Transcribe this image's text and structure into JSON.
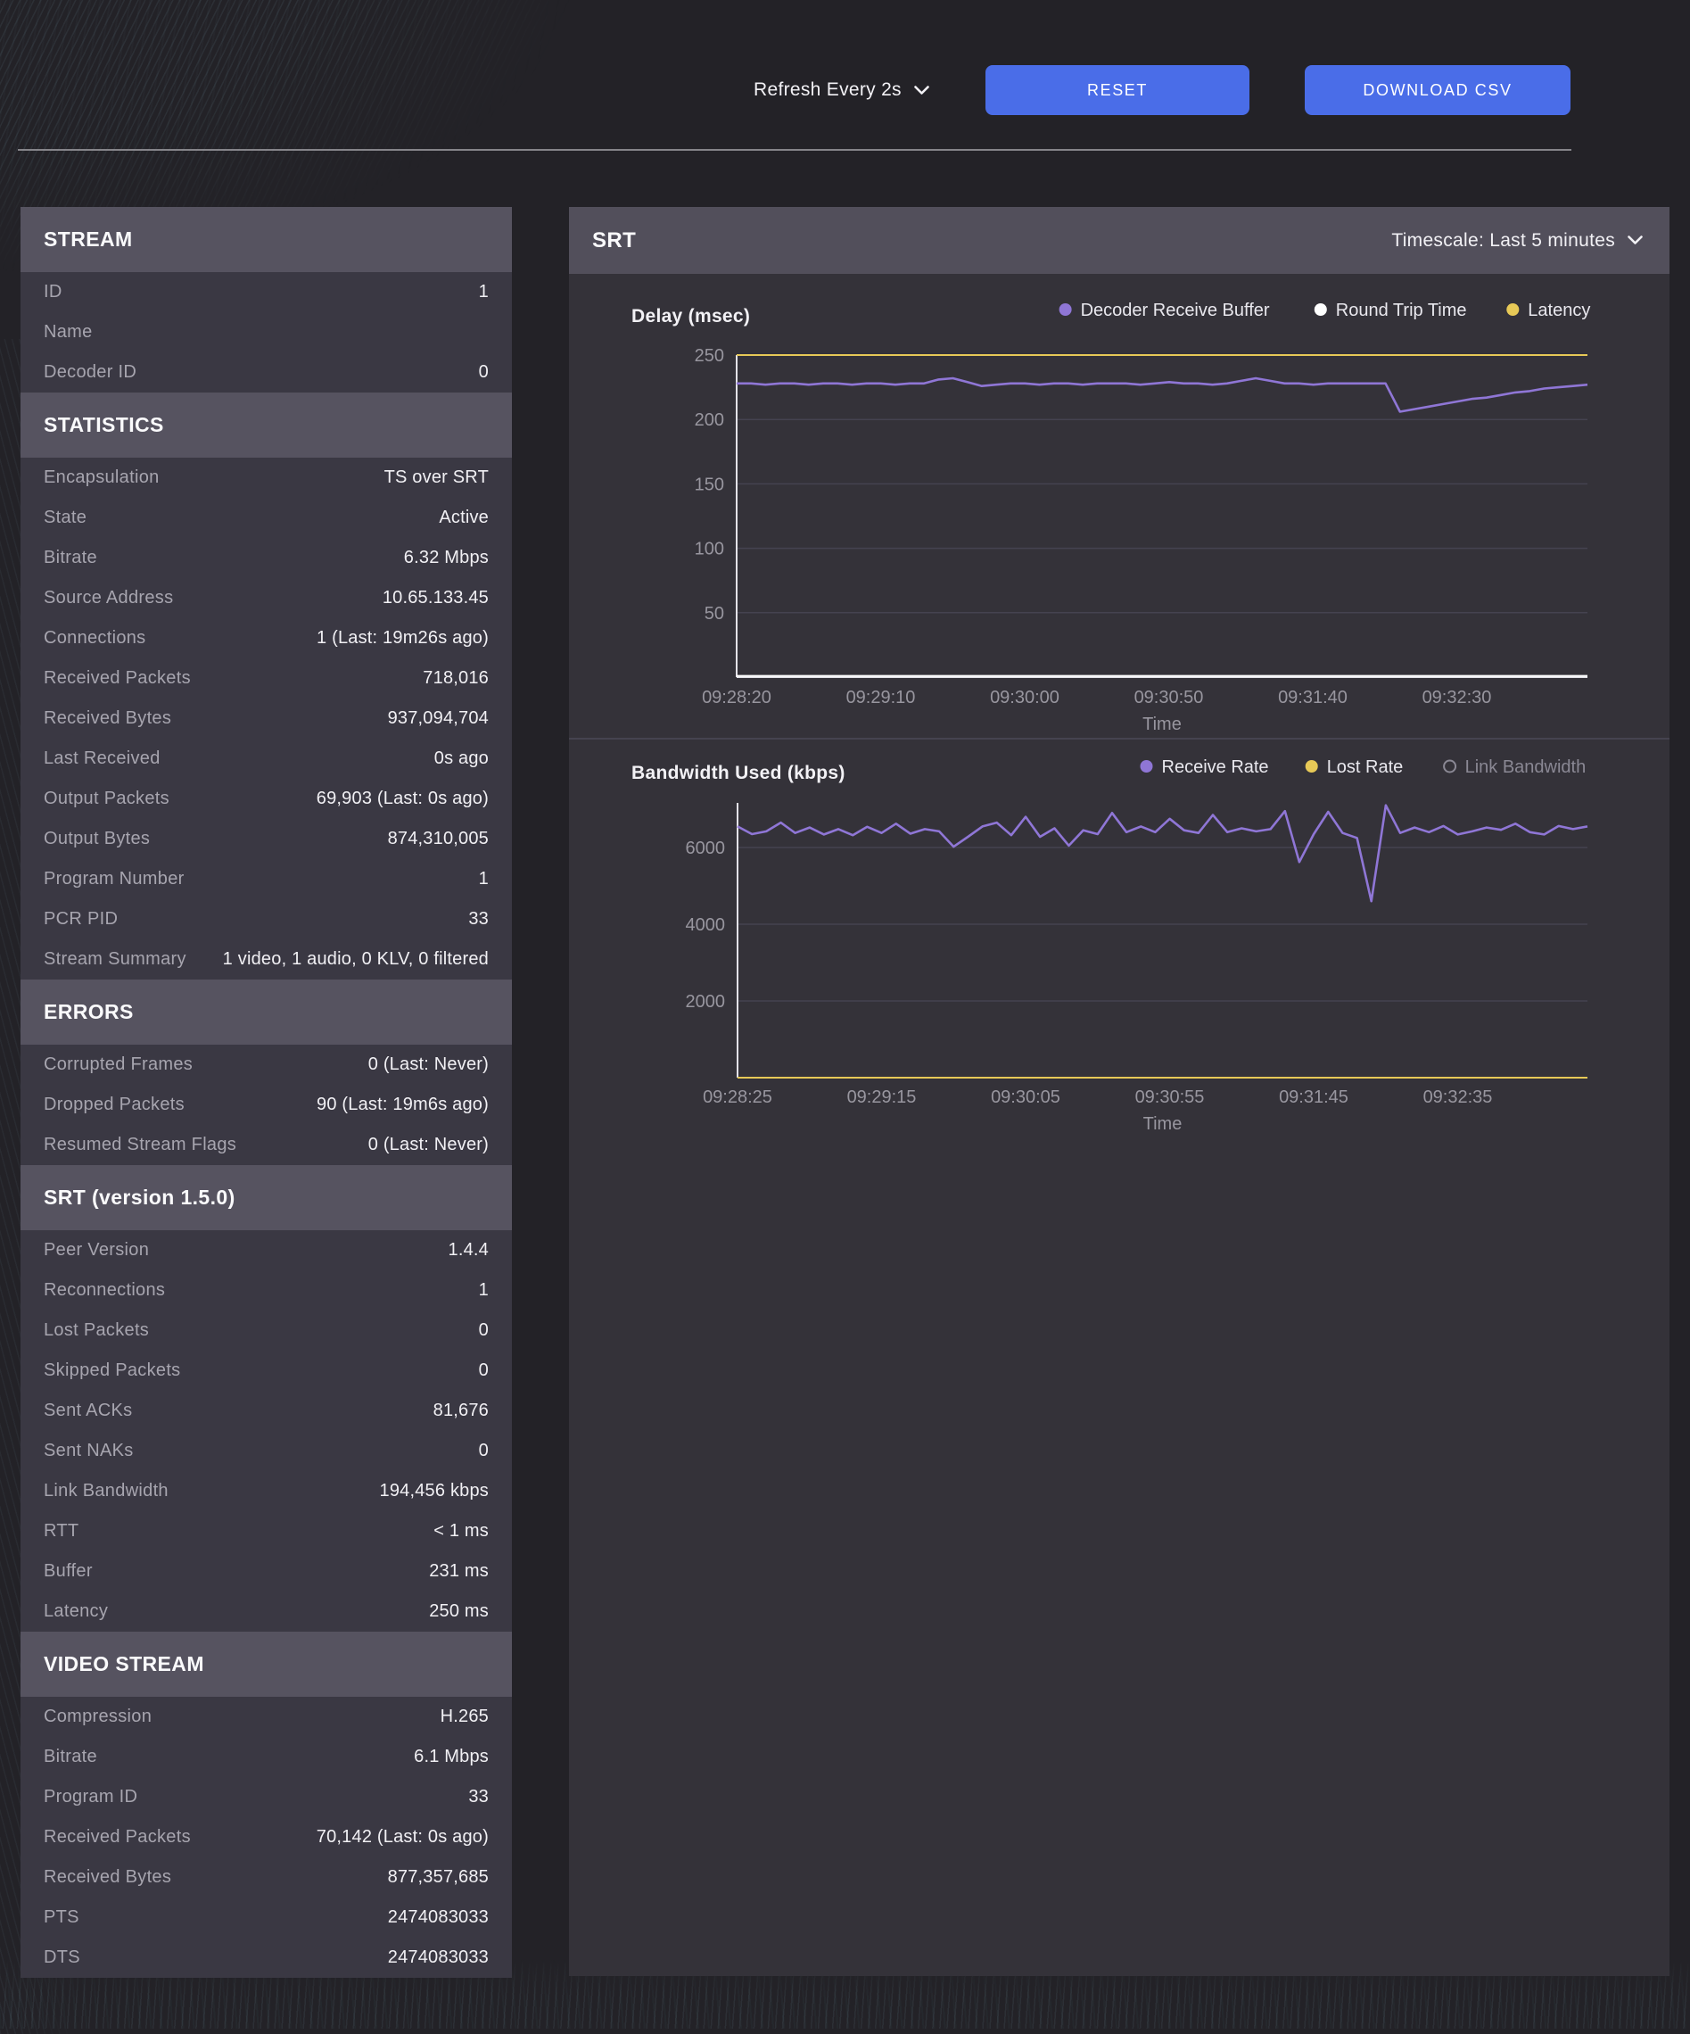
{
  "toolbar": {
    "refresh_label": "Refresh Every 2s",
    "reset_label": "RESET",
    "download_label": "DOWNLOAD CSV"
  },
  "left_panel": {
    "sections": [
      {
        "title": "STREAM",
        "rows": [
          {
            "label": "ID",
            "value": "1"
          },
          {
            "label": "Name",
            "value": ""
          },
          {
            "label": "Decoder ID",
            "value": "0"
          }
        ]
      },
      {
        "title": "STATISTICS",
        "rows": [
          {
            "label": "Encapsulation",
            "value": "TS over SRT"
          },
          {
            "label": "State",
            "value": "Active"
          },
          {
            "label": "Bitrate",
            "value": "6.32 Mbps"
          },
          {
            "label": "Source Address",
            "value": "10.65.133.45"
          },
          {
            "label": "Connections",
            "value": "1 (Last: 19m26s ago)"
          },
          {
            "label": "Received Packets",
            "value": "718,016"
          },
          {
            "label": "Received Bytes",
            "value": "937,094,704"
          },
          {
            "label": "Last Received",
            "value": "0s ago"
          },
          {
            "label": "Output Packets",
            "value": "69,903 (Last: 0s ago)"
          },
          {
            "label": "Output Bytes",
            "value": "874,310,005"
          },
          {
            "label": "Program Number",
            "value": "1"
          },
          {
            "label": "PCR PID",
            "value": "33"
          },
          {
            "label": "Stream Summary",
            "value": "1 video, 1 audio, 0 KLV, 0 filtered"
          }
        ]
      },
      {
        "title": "ERRORS",
        "rows": [
          {
            "label": "Corrupted Frames",
            "value": "0 (Last: Never)"
          },
          {
            "label": "Dropped Packets",
            "value": "90 (Last: 19m6s ago)"
          },
          {
            "label": "Resumed Stream Flags",
            "value": "0 (Last: Never)"
          }
        ]
      },
      {
        "title": "SRT (version 1.5.0)",
        "rows": [
          {
            "label": "Peer Version",
            "value": "1.4.4"
          },
          {
            "label": "Reconnections",
            "value": "1"
          },
          {
            "label": "Lost Packets",
            "value": "0"
          },
          {
            "label": "Skipped Packets",
            "value": "0"
          },
          {
            "label": "Sent ACKs",
            "value": "81,676"
          },
          {
            "label": "Sent NAKs",
            "value": "0"
          },
          {
            "label": "Link Bandwidth",
            "value": "194,456 kbps"
          },
          {
            "label": "RTT",
            "value": "< 1 ms"
          },
          {
            "label": "Buffer",
            "value": "231 ms"
          },
          {
            "label": "Latency",
            "value": "250 ms"
          }
        ]
      },
      {
        "title": "VIDEO STREAM",
        "rows": [
          {
            "label": "Compression",
            "value": "H.265"
          },
          {
            "label": "Bitrate",
            "value": "6.1 Mbps"
          },
          {
            "label": "Program ID",
            "value": "33"
          },
          {
            "label": "Received Packets",
            "value": "70,142 (Last: 0s ago)"
          },
          {
            "label": "Received Bytes",
            "value": "877,357,685"
          },
          {
            "label": "PTS",
            "value": "2474083033"
          },
          {
            "label": "DTS",
            "value": "2474083033"
          }
        ]
      }
    ]
  },
  "srt_panel": {
    "title": "SRT",
    "timescale_label": "Timescale: Last 5 minutes"
  },
  "chart_data": [
    {
      "type": "line",
      "title": "Delay (msec)",
      "xlabel": "Time",
      "ylim": [
        0,
        250
      ],
      "yticks": [
        50,
        100,
        150,
        200,
        250
      ],
      "x_tick_labels": [
        "09:28:20",
        "09:29:10",
        "09:30:00",
        "09:30:50",
        "09:31:40",
        "09:32:30"
      ],
      "grid": true,
      "legend_position": "top-right",
      "series": [
        {
          "name": "Decoder Receive Buffer",
          "color": "#8f76d6",
          "disabled": false,
          "values": [
            228,
            228,
            227,
            228,
            228,
            227,
            228,
            228,
            227,
            228,
            228,
            227,
            228,
            228,
            231,
            232,
            229,
            226,
            227,
            228,
            228,
            227,
            228,
            228,
            227,
            228,
            228,
            228,
            227,
            228,
            229,
            228,
            228,
            227,
            228,
            230,
            232,
            230,
            228,
            228,
            227,
            228,
            228,
            228,
            228,
            228,
            206,
            208,
            210,
            212,
            214,
            216,
            217,
            219,
            221,
            222,
            224,
            225,
            226,
            227
          ]
        },
        {
          "name": "Round Trip Time",
          "color": "#ffffff",
          "disabled": false,
          "values": [
            1,
            1,
            1,
            1,
            1,
            1,
            1,
            1,
            1,
            1,
            1,
            1,
            1,
            1,
            1,
            1,
            1,
            1,
            1,
            1,
            1,
            1,
            1,
            1,
            1,
            1,
            1,
            1,
            1,
            1,
            1,
            1,
            1,
            1,
            1,
            1,
            1,
            1,
            1,
            1,
            1,
            1,
            1,
            1,
            1,
            1,
            1,
            1,
            1,
            1,
            1,
            1,
            1,
            1,
            1,
            1,
            1,
            1,
            1,
            1
          ]
        },
        {
          "name": "Latency",
          "color": "#e7c957",
          "disabled": false,
          "values": [
            250,
            250,
            250,
            250,
            250,
            250,
            250,
            250,
            250,
            250,
            250,
            250,
            250,
            250,
            250,
            250,
            250,
            250,
            250,
            250,
            250,
            250,
            250,
            250,
            250,
            250,
            250,
            250,
            250,
            250,
            250,
            250,
            250,
            250,
            250,
            250,
            250,
            250,
            250,
            250,
            250,
            250,
            250,
            250,
            250,
            250,
            250,
            250,
            250,
            250,
            250,
            250,
            250,
            250,
            250,
            250,
            250,
            250,
            250,
            250
          ]
        }
      ]
    },
    {
      "type": "line",
      "title": "Bandwidth Used (kbps)",
      "xlabel": "Time",
      "ylim": [
        0,
        7160
      ],
      "yticks": [
        2000,
        4000,
        6000
      ],
      "x_tick_labels": [
        "09:28:25",
        "09:29:15",
        "09:30:05",
        "09:30:55",
        "09:31:45",
        "09:32:35"
      ],
      "grid": true,
      "legend_position": "top-right",
      "series": [
        {
          "name": "Receive Rate",
          "color": "#8f76d6",
          "disabled": false,
          "values": [
            6550,
            6350,
            6420,
            6650,
            6380,
            6520,
            6340,
            6480,
            6320,
            6540,
            6380,
            6620,
            6360,
            6480,
            6420,
            6020,
            6280,
            6550,
            6650,
            6320,
            6800,
            6280,
            6500,
            6050,
            6450,
            6350,
            6900,
            6400,
            6550,
            6400,
            6750,
            6450,
            6380,
            6850,
            6400,
            6500,
            6420,
            6480,
            6950,
            5620,
            6350,
            6930,
            6380,
            6250,
            4600,
            7100,
            6380,
            6520,
            6400,
            6560,
            6340,
            6420,
            6520,
            6460,
            6620,
            6400,
            6340,
            6560,
            6480,
            6550
          ]
        },
        {
          "name": "Lost Rate",
          "color": "#e7c957",
          "disabled": false,
          "values": [
            0,
            0,
            0,
            0,
            0,
            0,
            0,
            0,
            0,
            0,
            0,
            0,
            0,
            0,
            0,
            0,
            0,
            0,
            0,
            0,
            0,
            0,
            0,
            0,
            0,
            0,
            0,
            0,
            0,
            0,
            0,
            0,
            0,
            0,
            0,
            0,
            0,
            0,
            0,
            0,
            0,
            0,
            0,
            0,
            0,
            0,
            0,
            0,
            0,
            0,
            0,
            0,
            0,
            0,
            0,
            0,
            0,
            0,
            0,
            0
          ]
        },
        {
          "name": "Link Bandwidth",
          "color": "#8a8894",
          "disabled": true,
          "values": null
        }
      ]
    }
  ]
}
